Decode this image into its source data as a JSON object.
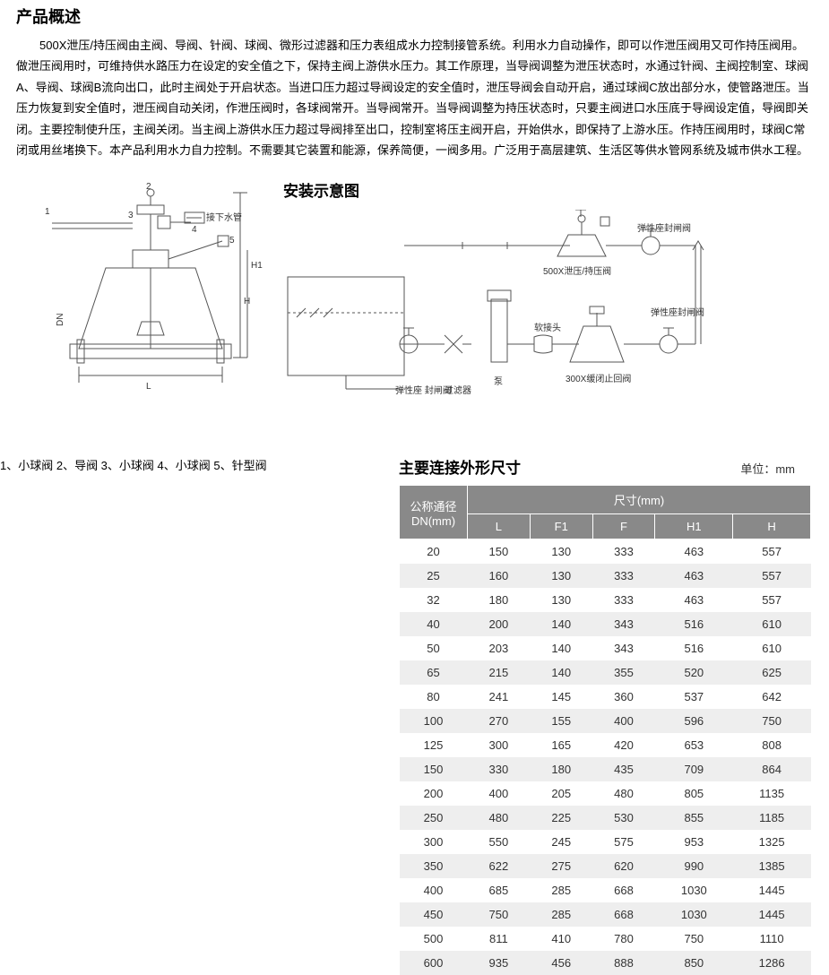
{
  "title": "产品概述",
  "description": "500X泄压/持压阀由主阀、导阀、针阀、球阀、微形过滤器和压力表组成水力控制接管系统。利用水力自动操作，即可以作泄压阀用又可作持压阀用。做泄压阀用时，可维持供水路压力在设定的安全值之下，保持主阀上游供水压力。其工作原理，当导阀调整为泄压状态时，水通过针阀、主阀控制室、球阀A、导阀、球阀B流向出口，此时主阀处于开启状态。当进口压力超过导阀设定的安全值时，泄压导阀会自动开启，通过球阀C放出部分水，使管路泄压。当压力恢复到安全值时，泄压阀自动关闭，作泄压阀时，各球阀常开。当导阀常开。当导阀调整为持压状态时，只要主阀进口水压底于导阀设定值，导阀即关闭。主要控制使升压，主阀关闭。当主阀上游供水压力超过导阀排至出口，控制室将压主阀开启，开始供水，即保持了上游水压。作持压阀用时，球阀C常闭或用丝堵换下。本产品利用水力自力控制。不需要其它装置和能源，保养简便，一阀多用。广泛用于高层建筑、生活区等供水管网系统及城市供水工程。",
  "install_title": "安装示意图",
  "legend_text": "1、小球阀 2、导阀 3、小球阀 4、小球阀 5、针型阀",
  "dim_title": "主要连接外形尺寸",
  "dim_unit": "单位：mm",
  "table": {
    "header_dn": "公称通径\nDN(mm)",
    "header_span": "尺寸(mm)",
    "cols": [
      "L",
      "F1",
      "F",
      "H1",
      "H"
    ],
    "rows": [
      [
        "20",
        "150",
        "130",
        "333",
        "463",
        "557"
      ],
      [
        "25",
        "160",
        "130",
        "333",
        "463",
        "557"
      ],
      [
        "32",
        "180",
        "130",
        "333",
        "463",
        "557"
      ],
      [
        "40",
        "200",
        "140",
        "343",
        "516",
        "610"
      ],
      [
        "50",
        "203",
        "140",
        "343",
        "516",
        "610"
      ],
      [
        "65",
        "215",
        "140",
        "355",
        "520",
        "625"
      ],
      [
        "80",
        "241",
        "145",
        "360",
        "537",
        "642"
      ],
      [
        "100",
        "270",
        "155",
        "400",
        "596",
        "750"
      ],
      [
        "125",
        "300",
        "165",
        "420",
        "653",
        "808"
      ],
      [
        "150",
        "330",
        "180",
        "435",
        "709",
        "864"
      ],
      [
        "200",
        "400",
        "205",
        "480",
        "805",
        "1135"
      ],
      [
        "250",
        "480",
        "225",
        "530",
        "855",
        "1185"
      ],
      [
        "300",
        "550",
        "245",
        "575",
        "953",
        "1325"
      ],
      [
        "350",
        "622",
        "275",
        "620",
        "990",
        "1385"
      ],
      [
        "400",
        "685",
        "285",
        "668",
        "1030",
        "1445"
      ],
      [
        "450",
        "750",
        "285",
        "668",
        "1030",
        "1445"
      ],
      [
        "500",
        "811",
        "410",
        "780",
        "750",
        "1110"
      ],
      [
        "600",
        "935",
        "456",
        "888",
        "850",
        "1286"
      ]
    ]
  },
  "diag_labels": {
    "left": {
      "n1": "1",
      "n2": "2",
      "n3": "3",
      "n4": "4",
      "n5": "5",
      "water": "接下水管",
      "L": "L",
      "DN": "DN",
      "H": "H",
      "H1": "H1"
    },
    "right": {
      "valve500x": "500X泄压/持压阀",
      "seal_valve": "弹性座封闸阀",
      "seal_valve2": "弹性座\n封闸阀",
      "seal_valve3": "弹性座封闸阀",
      "filter": "过滤器",
      "pump": "泵",
      "flex": "软接头",
      "check300x": "300X缓闭止回阀"
    }
  }
}
